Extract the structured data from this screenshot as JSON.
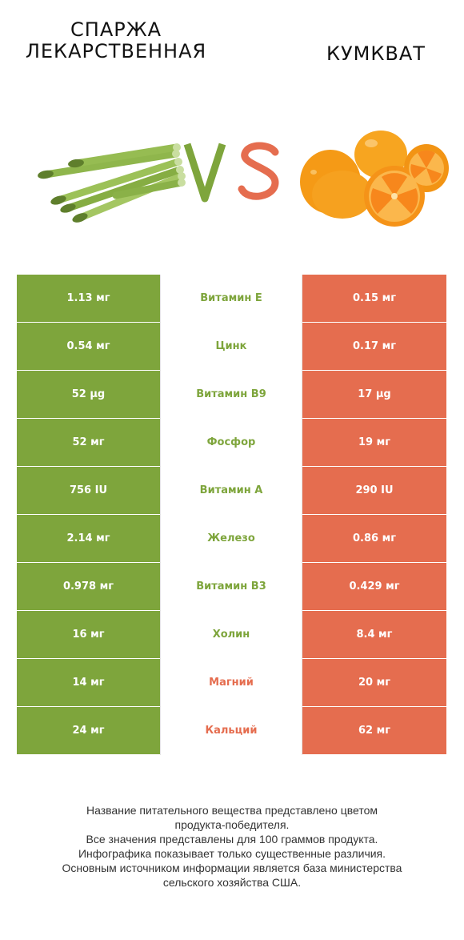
{
  "header": {
    "left_title_line1": "Спаржа",
    "left_title_line2": "лекарственная",
    "right_title": "Кумкват",
    "vs_text": "VS"
  },
  "images": {
    "left": "asparagus-illustration",
    "right": "kumquat-illustration"
  },
  "colors": {
    "left_winner": "#7ea53c",
    "right_winner": "#e56d4f",
    "neutral_cell": "#ffffff",
    "vs_v": "#7ea53c",
    "vs_s": "#e56d4f"
  },
  "rows": [
    {
      "nutrient": "Витамин E",
      "left": "1.13 мг",
      "right": "0.15 мг",
      "winner": "left"
    },
    {
      "nutrient": "Цинк",
      "left": "0.54 мг",
      "right": "0.17 мг",
      "winner": "left"
    },
    {
      "nutrient": "Витамин B9",
      "left": "52 µg",
      "right": "17 µg",
      "winner": "left"
    },
    {
      "nutrient": "Фосфор",
      "left": "52 мг",
      "right": "19 мг",
      "winner": "left"
    },
    {
      "nutrient": "Витамин A",
      "left": "756 IU",
      "right": "290 IU",
      "winner": "left"
    },
    {
      "nutrient": "Железо",
      "left": "2.14 мг",
      "right": "0.86 мг",
      "winner": "left"
    },
    {
      "nutrient": "Витамин B3",
      "left": "0.978 мг",
      "right": "0.429 мг",
      "winner": "left"
    },
    {
      "nutrient": "Холин",
      "left": "16 мг",
      "right": "8.4 мг",
      "winner": "left"
    },
    {
      "nutrient": "Магний",
      "left": "14 мг",
      "right": "20 мг",
      "winner": "right"
    },
    {
      "nutrient": "Кальций",
      "left": "24 мг",
      "right": "62 мг",
      "winner": "right"
    }
  ],
  "footer": {
    "line1": "Название питательного вещества представлено цветом",
    "line2": "продукта-победителя.",
    "line3": "Все значения представлены для 100 граммов продукта.",
    "line4": "Инфографика показывает только существенные различия.",
    "line5": "Основным источником информации является база министерства",
    "line6": "сельского хозяйства США."
  }
}
